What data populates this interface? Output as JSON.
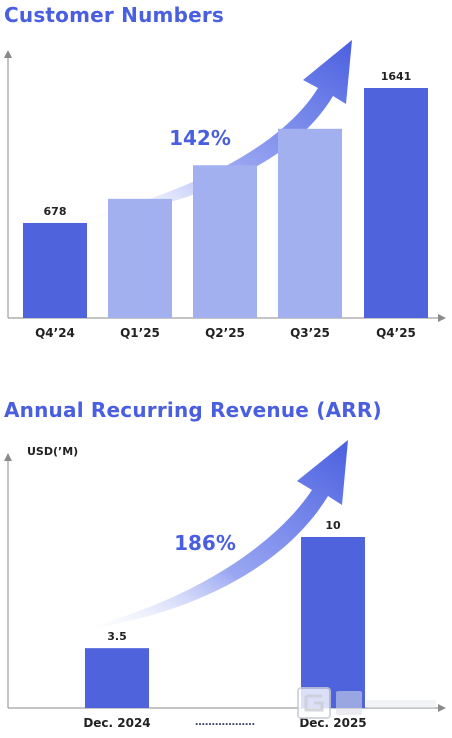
{
  "chart_data": [
    {
      "type": "bar",
      "title": "Customer Numbers",
      "categories": [
        "Q4’24",
        "Q1’25",
        "Q2’25",
        "Q3’25",
        "Q4’25"
      ],
      "values": [
        678,
        850,
        1090,
        1350,
        1641
      ],
      "data_labels": [
        "678",
        "",
        "",
        "",
        "1641"
      ],
      "growth_label": "142%",
      "colors": [
        "#4f64dc",
        "#a3b0f0",
        "#a3b0f0",
        "#a3b0f0",
        "#4f64dc"
      ]
    },
    {
      "type": "bar",
      "title": "Annual Recurring Revenue (ARR)",
      "ylabel": "USD(’M)",
      "categories": [
        "Dec. 2024",
        "Dec. 2025"
      ],
      "separator": "………………",
      "values": [
        3.5,
        10
      ],
      "data_labels": [
        "3.5",
        "10"
      ],
      "growth_label": "186%",
      "colors": [
        "#4f64dc",
        "#4f64dc"
      ]
    }
  ],
  "accent_color": "#4a5fe0"
}
